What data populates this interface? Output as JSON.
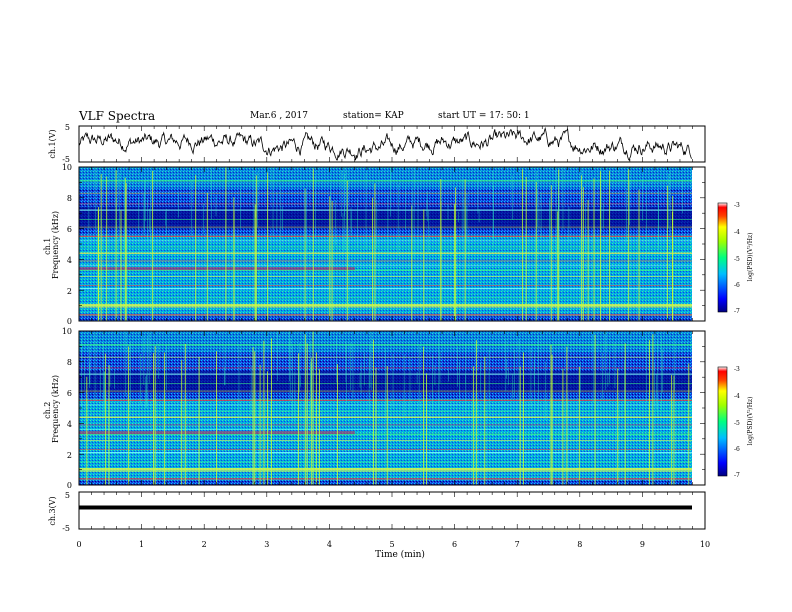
{
  "header": {
    "title": "VLF Spectra",
    "date": "Mar.6 , 2017",
    "station": "station= KAP",
    "start_ut": "start UT =  17: 50: 1"
  },
  "chart_data": [
    {
      "type": "line",
      "name": "ch1-waveform",
      "ylabel": "ch.1(V)",
      "ylim": [
        -5,
        5
      ],
      "y_ticks": [
        "5",
        "-5"
      ],
      "xlim": [
        0,
        10
      ]
    },
    {
      "type": "heatmap",
      "name": "ch1-spectrogram",
      "ylabel": "ch.1\nFrequency (kHz)",
      "ylim": [
        0,
        10
      ],
      "y_ticks": [
        "0",
        "2",
        "4",
        "6",
        "8",
        "10"
      ],
      "xlim": [
        0,
        10
      ],
      "colorbar": {
        "label": "log(PSD)(V²/Hz)",
        "range": [
          -7,
          -3
        ],
        "ticks": [
          "-3",
          "-4",
          "-5",
          "-6",
          "-7"
        ]
      }
    },
    {
      "type": "heatmap",
      "name": "ch2-spectrogram",
      "ylabel": "ch.2\nFrequency (kHz)",
      "ylim": [
        0,
        10
      ],
      "y_ticks": [
        "0",
        "2",
        "4",
        "6",
        "8",
        "10"
      ],
      "xlim": [
        0,
        10
      ],
      "colorbar": {
        "label": "log(PSD)(V²/Hz)",
        "range": [
          -7,
          -3
        ],
        "ticks": [
          "-3",
          "-4",
          "-5",
          "-6",
          "-7"
        ]
      }
    },
    {
      "type": "line",
      "name": "ch3-waveform",
      "ylabel": "ch.3(V)",
      "ylim": [
        -5,
        5
      ],
      "y_ticks": [
        "5",
        "-5"
      ],
      "constant_value": 0.8,
      "xlim": [
        0,
        10
      ],
      "xlabel": "Time (min)",
      "x_ticks": [
        "0",
        "1",
        "2",
        "3",
        "4",
        "5",
        "6",
        "7",
        "8",
        "9",
        "10"
      ]
    }
  ]
}
